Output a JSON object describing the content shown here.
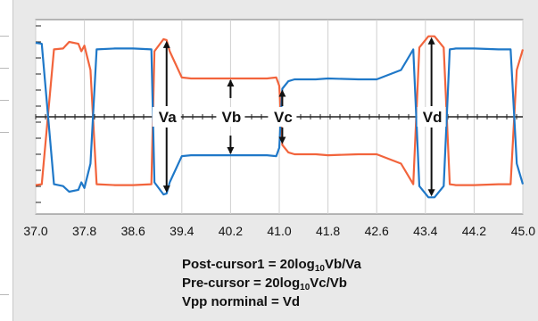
{
  "chart_data": {
    "type": "line",
    "xlabel": "",
    "ylabel": "",
    "xlim": [
      37.0,
      45.0
    ],
    "x_ticks": [
      "37.0",
      "37.8",
      "38.6",
      "39.4",
      "40.2",
      "41.0",
      "41.8",
      "42.6",
      "43.4",
      "44.2",
      "45.0"
    ],
    "grid": true,
    "colors": {
      "red_trace": "#f2643c",
      "blue_trace": "#1f78c8",
      "grid": "#222222",
      "plot_bg": "#ffffff"
    },
    "series": [
      {
        "color": "#f2643c",
        "x": [
          37.0,
          37.1,
          37.3,
          37.45,
          37.55,
          37.7,
          37.75,
          37.8,
          37.9,
          38.0,
          38.3,
          38.6,
          38.9,
          38.95,
          39.1,
          39.15,
          39.2,
          39.4,
          39.55,
          40.2,
          40.8,
          40.95,
          41.0,
          41.05,
          41.15,
          41.25,
          41.6,
          41.8,
          42.3,
          42.6,
          43.0,
          43.2,
          43.3,
          43.45,
          43.55,
          43.7,
          43.8,
          43.9,
          44.2,
          44.6,
          44.8,
          44.9,
          45.0
        ],
        "y": [
          -0.73,
          -0.72,
          0.72,
          0.73,
          0.8,
          0.78,
          0.7,
          0.76,
          0.5,
          -0.72,
          -0.73,
          -0.73,
          -0.72,
          0.7,
          0.83,
          0.82,
          0.7,
          0.42,
          0.41,
          0.41,
          0.41,
          0.42,
          0.33,
          -0.3,
          -0.38,
          -0.4,
          -0.4,
          -0.41,
          -0.4,
          -0.4,
          -0.5,
          -0.72,
          0.74,
          0.86,
          0.86,
          0.74,
          -0.72,
          -0.73,
          -0.73,
          -0.72,
          -0.72,
          0.5,
          0.72
        ]
      },
      {
        "color": "#1f78c8",
        "x": [
          37.0,
          37.1,
          37.3,
          37.45,
          37.55,
          37.7,
          37.75,
          37.8,
          37.9,
          38.0,
          38.3,
          38.6,
          38.9,
          38.95,
          39.1,
          39.15,
          39.2,
          39.4,
          39.55,
          40.2,
          40.8,
          40.95,
          41.0,
          41.05,
          41.15,
          41.25,
          41.6,
          41.8,
          42.3,
          42.6,
          43.0,
          43.2,
          43.3,
          43.45,
          43.55,
          43.7,
          43.8,
          43.9,
          44.2,
          44.6,
          44.8,
          44.9,
          45.0
        ],
        "y": [
          0.79,
          0.78,
          -0.72,
          -0.74,
          -0.8,
          -0.78,
          -0.7,
          -0.76,
          -0.5,
          0.72,
          0.73,
          0.73,
          0.72,
          -0.7,
          -0.83,
          -0.82,
          -0.7,
          -0.42,
          -0.41,
          -0.41,
          -0.41,
          -0.42,
          -0.33,
          0.3,
          0.38,
          0.4,
          0.4,
          0.41,
          0.4,
          0.4,
          0.5,
          0.72,
          -0.74,
          -0.86,
          -0.86,
          -0.74,
          0.72,
          0.73,
          0.73,
          0.72,
          0.72,
          -0.5,
          -0.72
        ]
      }
    ],
    "annotations": [
      {
        "label": "Va",
        "x": 39.15
      },
      {
        "label": "Vb",
        "x": 40.2
      },
      {
        "label": "Vc",
        "x": 41.05
      },
      {
        "label": "Vd",
        "x": 43.5
      }
    ]
  },
  "formulas": [
    {
      "pre": "Post-cursor1 = 20log",
      "sub": "10",
      "post": "Vb/Va"
    },
    {
      "pre": "Pre-cursor = 20log",
      "sub": "10",
      "post": "Vc/Vb"
    },
    {
      "pre": "Vpp norminal = Vd",
      "sub": "",
      "post": ""
    }
  ]
}
